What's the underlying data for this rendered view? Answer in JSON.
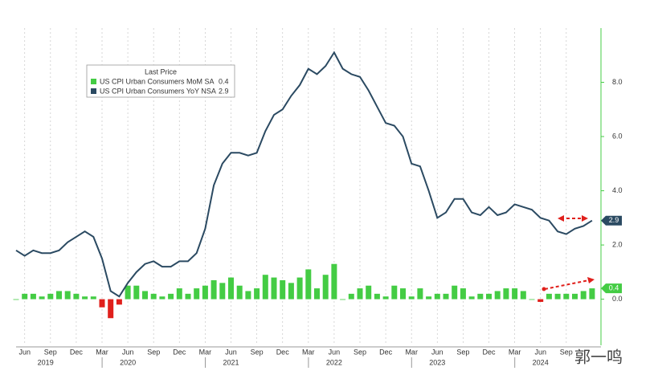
{
  "chart_data": {
    "type": "bar-line",
    "legend_title": "Last Price",
    "categories": [
      null,
      "Jun",
      null,
      null,
      "Sep",
      null,
      null,
      "Dec",
      null,
      null,
      "Mar",
      null,
      null,
      "Jun",
      null,
      null,
      "Sep",
      null,
      null,
      "Dec",
      null,
      null,
      "Mar",
      null,
      null,
      "Jun",
      null,
      null,
      "Sep",
      null,
      null,
      "Dec",
      null,
      null,
      "Mar",
      null,
      null,
      "Jun",
      null,
      null,
      "Sep",
      null,
      null,
      "Dec",
      null,
      null,
      "Mar",
      null,
      null,
      "Jun",
      null,
      null,
      "Sep",
      null,
      null,
      "Dec",
      null,
      null,
      "Mar",
      null,
      null,
      "Jun",
      null,
      null,
      "Sep",
      null,
      null,
      null
    ],
    "years": [
      "2019",
      "2020",
      "2021",
      "2022",
      "2023",
      "2024"
    ],
    "series": [
      {
        "name": "US CPI Urban Consumers MoM SA",
        "type": "bar",
        "color": "#44cc44",
        "negative_color": "#e0201c",
        "values": [
          0.0,
          0.2,
          0.2,
          0.1,
          0.2,
          0.3,
          0.3,
          0.2,
          0.1,
          0.1,
          -0.3,
          -0.7,
          -0.2,
          0.5,
          0.5,
          0.3,
          0.2,
          0.1,
          0.2,
          0.4,
          0.2,
          0.4,
          0.5,
          0.7,
          0.6,
          0.8,
          0.5,
          0.3,
          0.4,
          0.9,
          0.8,
          0.7,
          0.6,
          0.8,
          1.1,
          0.4,
          0.9,
          1.3,
          0.0,
          0.2,
          0.4,
          0.5,
          0.2,
          0.1,
          0.5,
          0.4,
          0.1,
          0.4,
          0.1,
          0.2,
          0.2,
          0.5,
          0.4,
          0.1,
          0.2,
          0.2,
          0.3,
          0.4,
          0.4,
          0.3,
          0.0,
          -0.1,
          0.2,
          0.2,
          0.2,
          0.2,
          0.3,
          0.4
        ]
      },
      {
        "name": "US CPI Urban Consumers YoY NSA",
        "type": "line",
        "color": "#2b4a62",
        "values": [
          1.8,
          1.6,
          1.8,
          1.7,
          1.7,
          1.8,
          2.1,
          2.3,
          2.5,
          2.3,
          1.5,
          0.3,
          0.1,
          0.6,
          1.0,
          1.3,
          1.4,
          1.2,
          1.2,
          1.4,
          1.4,
          1.7,
          2.6,
          4.2,
          5.0,
          5.4,
          5.4,
          5.3,
          5.4,
          6.2,
          6.8,
          7.0,
          7.5,
          7.9,
          8.5,
          8.3,
          8.6,
          9.1,
          8.5,
          8.3,
          8.2,
          7.7,
          7.1,
          6.5,
          6.4,
          6.0,
          5.0,
          4.9,
          4.0,
          3.0,
          3.2,
          3.7,
          3.7,
          3.2,
          3.1,
          3.4,
          3.1,
          3.2,
          3.5,
          3.4,
          3.3,
          3.0,
          2.9,
          2.5,
          2.4,
          2.6,
          2.7,
          2.9
        ]
      }
    ],
    "ylim": [
      -1.7,
      10
    ],
    "yticks": [
      {
        "value": 0,
        "label": "0.0"
      },
      {
        "value": 2,
        "label": "2.0"
      },
      {
        "value": 4,
        "label": "4.0"
      },
      {
        "value": 6,
        "label": "6.0"
      },
      {
        "value": 8,
        "label": "8.0"
      }
    ],
    "grid": true,
    "watermark": "郭一鸣"
  }
}
